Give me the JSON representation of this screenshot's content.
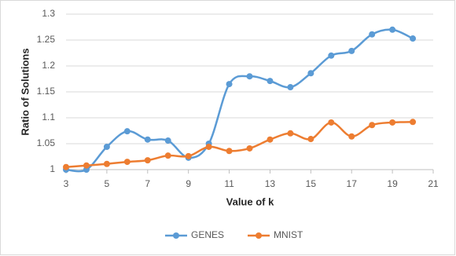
{
  "chart_data": {
    "type": "line",
    "x_label": "Value of k",
    "y_label": "Ratio of Solutions",
    "x": [
      3,
      4,
      5,
      6,
      7,
      8,
      9,
      10,
      11,
      12,
      13,
      14,
      15,
      16,
      17,
      18,
      19,
      20
    ],
    "series": [
      {
        "name": "GENES",
        "color": "#5b9bd5",
        "values": [
          1.0,
          1.0,
          1.044,
          1.074,
          1.058,
          1.056,
          1.023,
          1.05,
          1.165,
          1.18,
          1.171,
          1.159,
          1.186,
          1.22,
          1.229,
          1.261,
          1.27,
          1.253
        ]
      },
      {
        "name": "MNIST",
        "color": "#ed7d31",
        "values": [
          1.005,
          1.008,
          1.011,
          1.015,
          1.018,
          1.027,
          1.026,
          1.044,
          1.036,
          1.041,
          1.058,
          1.07,
          1.059,
          1.091,
          1.064,
          1.086,
          1.091,
          1.092
        ]
      }
    ],
    "xlim": [
      3,
      21
    ],
    "xticks": [
      3,
      5,
      7,
      9,
      11,
      13,
      15,
      17,
      19,
      21
    ],
    "ylim": [
      1,
      1.3
    ],
    "yticks": [
      1,
      1.05,
      1.1,
      1.15,
      1.2,
      1.25,
      1.3
    ],
    "grid": true,
    "smooth": true,
    "legend": "bottom"
  }
}
